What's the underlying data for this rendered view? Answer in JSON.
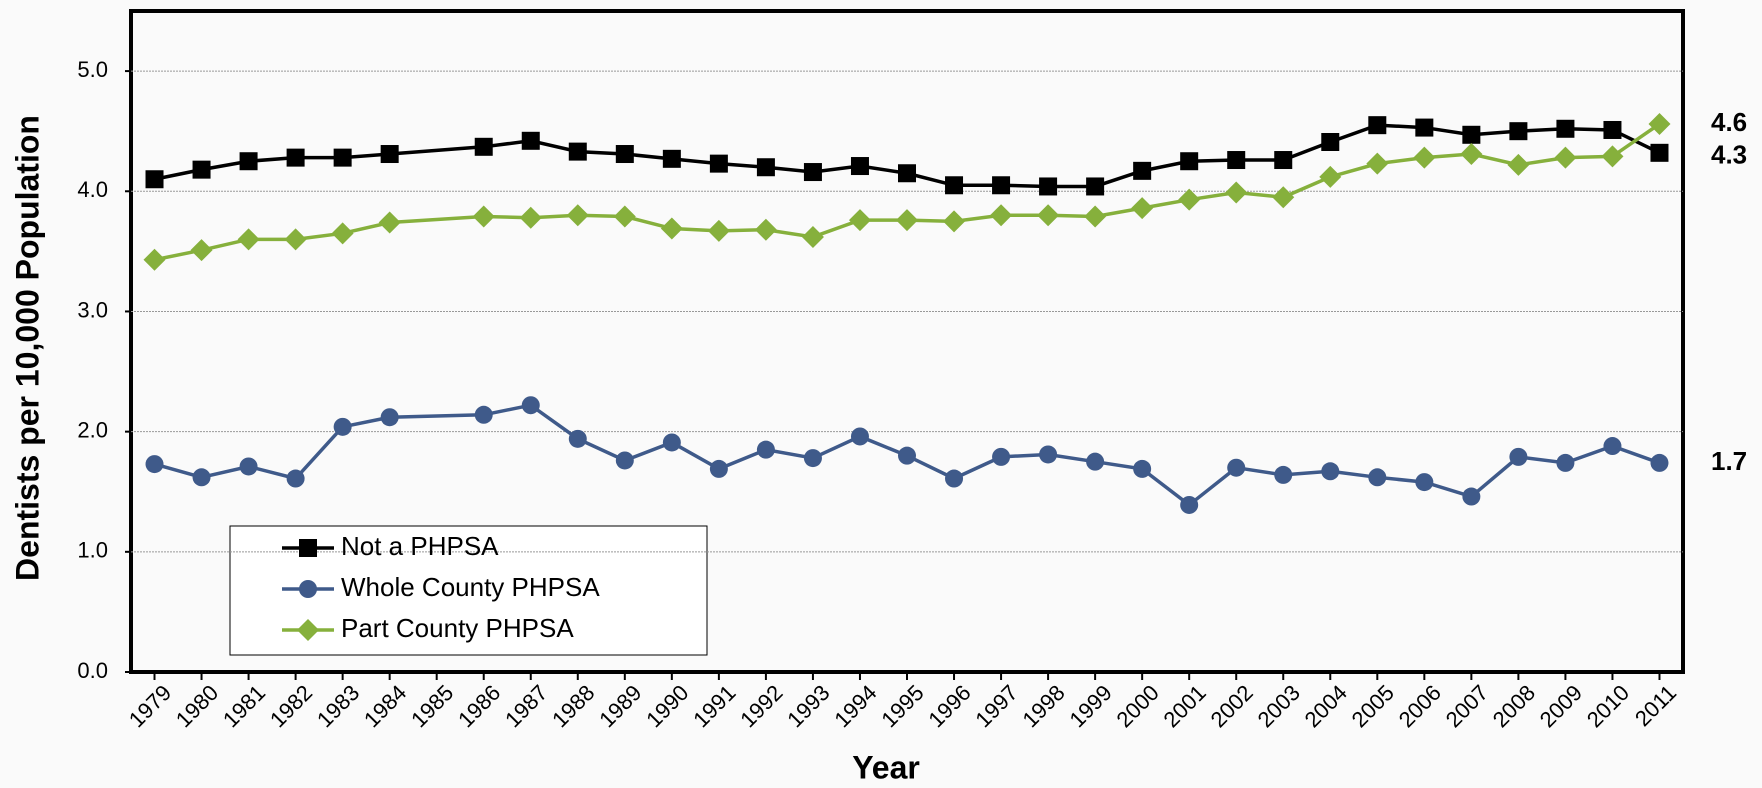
{
  "chart_data": {
    "type": "line",
    "y_label": "Dentists per 10,000 Population",
    "x_label": "Year",
    "x": [
      1979,
      1980,
      1981,
      1982,
      1983,
      1984,
      1986,
      1987,
      1988,
      1989,
      1990,
      1991,
      1992,
      1993,
      1994,
      1995,
      1996,
      1997,
      1998,
      1999,
      2000,
      2001,
      2002,
      2003,
      2004,
      2005,
      2006,
      2007,
      2008,
      2009,
      2010,
      2011
    ],
    "xlim": [
      1978.5,
      2011.5
    ],
    "xticks": [
      1979,
      1980,
      1981,
      1982,
      1983,
      1984,
      1985,
      1986,
      1987,
      1988,
      1989,
      1990,
      1991,
      1992,
      1993,
      1994,
      1995,
      1996,
      1997,
      1998,
      1999,
      2000,
      2001,
      2002,
      2003,
      2004,
      2005,
      2006,
      2007,
      2008,
      2009,
      2010,
      2011
    ],
    "ylim": [
      0,
      5.5
    ],
    "yticks": [
      {
        "value": 0,
        "label": "0.0"
      },
      {
        "value": 1,
        "label": "1.0"
      },
      {
        "value": 2,
        "label": "2.0"
      },
      {
        "value": 3,
        "label": "3.0"
      },
      {
        "value": 4,
        "label": "4.0"
      },
      {
        "value": 5,
        "label": "5.0"
      }
    ],
    "grid": true,
    "series": [
      {
        "name": "Not a PHPSA",
        "color": "#000000",
        "marker": "square",
        "values": [
          4.1,
          4.18,
          4.25,
          4.28,
          4.28,
          4.31,
          4.37,
          4.42,
          4.33,
          4.31,
          4.27,
          4.23,
          4.2,
          4.16,
          4.21,
          4.15,
          4.05,
          4.05,
          4.04,
          4.04,
          4.17,
          4.25,
          4.26,
          4.26,
          4.41,
          4.55,
          4.53,
          4.47,
          4.5,
          4.52,
          4.51,
          4.32
        ],
        "value_labels": [
          null,
          null,
          null,
          null,
          null,
          null,
          null,
          null,
          null,
          null,
          null,
          null,
          null,
          null,
          null,
          null,
          null,
          null,
          null,
          null,
          null,
          null,
          null,
          null,
          null,
          null,
          null,
          null,
          null,
          null,
          null,
          "4.3"
        ]
      },
      {
        "name": "Whole County PHPSA",
        "color": "#3f5a8a",
        "marker": "circle",
        "values": [
          1.73,
          1.62,
          1.71,
          1.61,
          2.04,
          2.12,
          2.14,
          2.22,
          1.94,
          1.76,
          1.91,
          1.69,
          1.85,
          1.78,
          1.96,
          1.8,
          1.61,
          1.79,
          1.81,
          1.75,
          1.69,
          1.39,
          1.7,
          1.64,
          1.67,
          1.62,
          1.58,
          1.46,
          1.79,
          1.74,
          1.88,
          1.74
        ],
        "value_labels": [
          null,
          null,
          null,
          null,
          null,
          null,
          null,
          null,
          null,
          null,
          null,
          null,
          null,
          null,
          null,
          null,
          null,
          null,
          null,
          null,
          null,
          null,
          null,
          null,
          null,
          null,
          null,
          null,
          null,
          null,
          null,
          "1.7"
        ]
      },
      {
        "name": "Part County PHPSA",
        "color": "#86b03c",
        "marker": "diamond",
        "values": [
          3.43,
          3.51,
          3.6,
          3.6,
          3.65,
          3.74,
          3.79,
          3.78,
          3.8,
          3.79,
          3.69,
          3.67,
          3.68,
          3.62,
          3.76,
          3.76,
          3.75,
          3.8,
          3.8,
          3.79,
          3.86,
          3.93,
          3.99,
          3.95,
          4.12,
          4.23,
          4.28,
          4.31,
          4.22,
          4.28,
          4.29,
          4.56
        ],
        "value_labels": [
          null,
          null,
          null,
          null,
          null,
          null,
          null,
          null,
          null,
          null,
          null,
          null,
          null,
          null,
          null,
          null,
          null,
          null,
          null,
          null,
          null,
          null,
          null,
          null,
          null,
          null,
          null,
          null,
          null,
          null,
          null,
          "4.6"
        ]
      }
    ]
  }
}
